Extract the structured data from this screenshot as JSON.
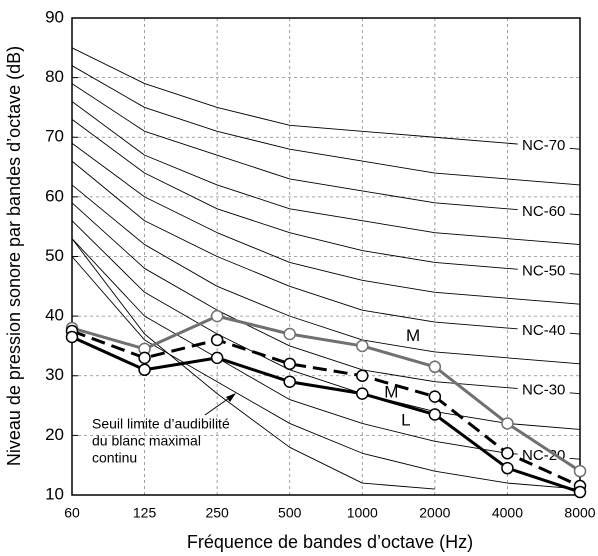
{
  "chart_data": {
    "type": "line",
    "x_label": "Fréquence de bandes d’octave (Hz)",
    "y_label": "Niveau de pression sonore  par bandes d’octave (dB)",
    "categories": [
      "60",
      "125",
      "250",
      "500",
      "1000",
      "2000",
      "4000",
      "8000"
    ],
    "ylim": [
      10,
      90
    ],
    "yticks": [
      10,
      20,
      30,
      40,
      50,
      60,
      70,
      80,
      90
    ],
    "grid": true,
    "annotation": [
      "Seuil limite d’audibilité",
      "du blanc maximal",
      "continu"
    ],
    "series": [
      {
        "color": "#000000",
        "values": [
          50,
          36,
          29,
          22,
          17,
          14,
          12,
          11
        ]
      },
      {
        "name": "NC-20",
        "color": "#000000",
        "values": [
          53,
          40,
          33,
          26,
          22,
          19,
          17,
          16
        ]
      },
      {
        "color": "#000000",
        "values": [
          56,
          44,
          37,
          31,
          27,
          24,
          22,
          21
        ]
      },
      {
        "name": "NC-30",
        "color": "#000000",
        "values": [
          59,
          48,
          41,
          35,
          31,
          29,
          28,
          27
        ]
      },
      {
        "color": "#000000",
        "values": [
          62,
          52,
          45,
          40,
          36,
          34,
          33,
          32
        ]
      },
      {
        "name": "NC-40",
        "color": "#000000",
        "values": [
          66,
          56,
          50,
          45,
          41,
          39,
          38,
          37
        ]
      },
      {
        "color": "#000000",
        "values": [
          69,
          60,
          54,
          49,
          46,
          44,
          43,
          42
        ]
      },
      {
        "name": "NC-50",
        "color": "#000000",
        "values": [
          73,
          64,
          58,
          54,
          51,
          49,
          48,
          47
        ]
      },
      {
        "color": "#000000",
        "values": [
          76,
          67,
          62,
          58,
          56,
          54,
          53,
          52
        ]
      },
      {
        "name": "NC-60",
        "color": "#000000",
        "values": [
          79,
          71,
          67,
          63,
          61,
          59,
          58,
          57
        ]
      },
      {
        "color": "#000000",
        "values": [
          82,
          75,
          71,
          68,
          66,
          64,
          63,
          62
        ]
      },
      {
        "name": "NC-70",
        "color": "#000000",
        "values": [
          85,
          79,
          75,
          72,
          71,
          70,
          69,
          68
        ]
      },
      {
        "color": "#000000",
        "values": [
          53,
          37,
          27,
          18,
          12,
          11,
          null,
          null
        ]
      },
      {
        "name": "M",
        "color": "#707070",
        "thick": true,
        "markers": true,
        "values": [
          38,
          34.5,
          40,
          37,
          35,
          31.5,
          22,
          14
        ]
      },
      {
        "name": "M",
        "color": "#000000",
        "thick": true,
        "dashed": true,
        "markers": true,
        "values": [
          37.5,
          33,
          36,
          32,
          30,
          26.5,
          17,
          11.5
        ]
      },
      {
        "name": "L",
        "color": "#000000",
        "thick": true,
        "markers": true,
        "values": [
          36.5,
          31,
          33,
          29,
          27,
          23.5,
          14.5,
          10.5
        ]
      }
    ]
  }
}
